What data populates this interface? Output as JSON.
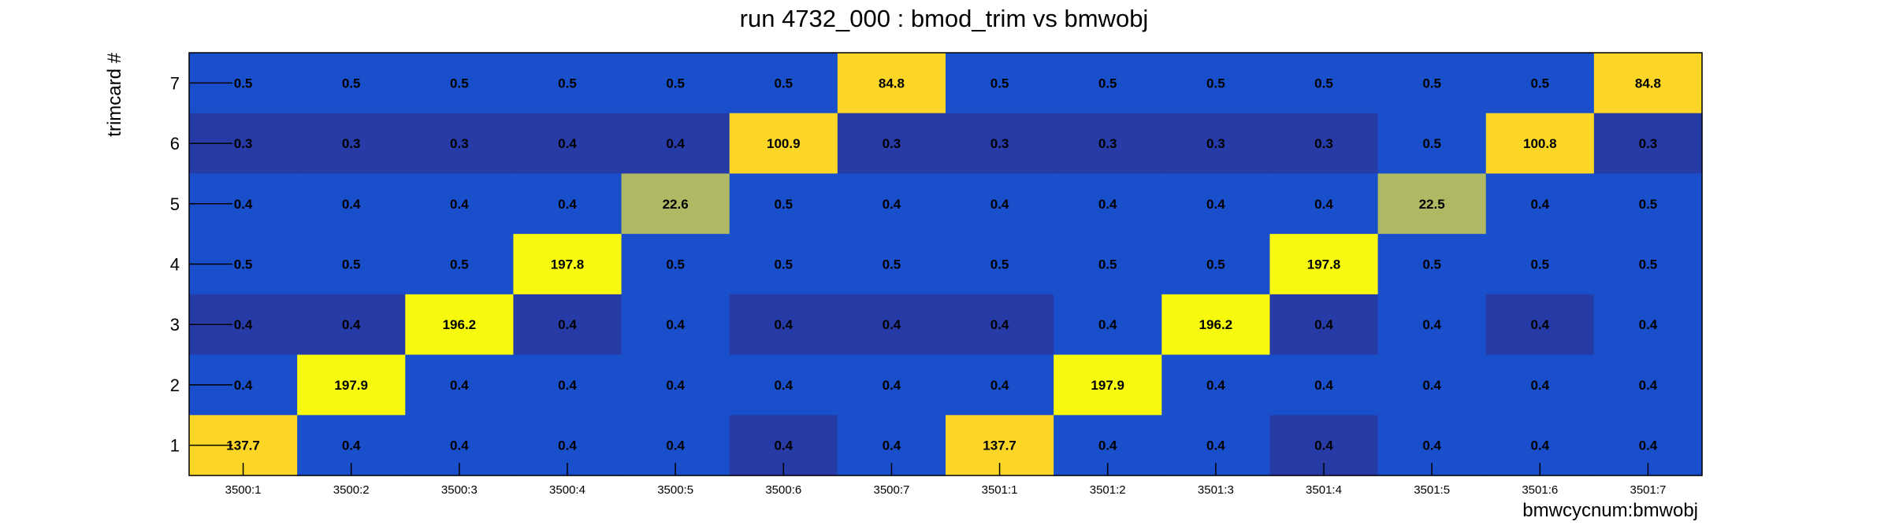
{
  "chart_data": {
    "type": "heatmap",
    "title": "run 4732_000 : bmod_trim vs bmwobj",
    "xlabel": "bmwcycnum:bmwobj",
    "ylabel": "trimcard #",
    "x_categories": [
      "3500:1",
      "3500:2",
      "3500:3",
      "3500:4",
      "3500:5",
      "3500:6",
      "3500:7",
      "3501:1",
      "3501:2",
      "3501:3",
      "3501:4",
      "3501:5",
      "3501:6",
      "3501:7"
    ],
    "y_categories": [
      "1",
      "2",
      "3",
      "4",
      "5",
      "6",
      "7"
    ],
    "rows": [
      {
        "y": "7",
        "values": [
          "0.5",
          "0.5",
          "0.5",
          "0.5",
          "0.5",
          "0.5",
          "84.8",
          "0.5",
          "0.5",
          "0.5",
          "0.5",
          "0.5",
          "0.5",
          "84.8"
        ]
      },
      {
        "y": "6",
        "values": [
          "0.3",
          "0.3",
          "0.3",
          "0.4",
          "0.4",
          "100.9",
          "0.3",
          "0.3",
          "0.3",
          "0.3",
          "0.3",
          "0.5",
          "100.8",
          "0.3"
        ]
      },
      {
        "y": "5",
        "values": [
          "0.4",
          "0.4",
          "0.4",
          "0.4",
          "22.6",
          "0.5",
          "0.4",
          "0.4",
          "0.4",
          "0.4",
          "0.4",
          "22.5",
          "0.4",
          "0.5"
        ]
      },
      {
        "y": "4",
        "values": [
          "0.5",
          "0.5",
          "0.5",
          "197.8",
          "0.5",
          "0.5",
          "0.5",
          "0.5",
          "0.5",
          "0.5",
          "197.8",
          "0.5",
          "0.5",
          "0.5"
        ]
      },
      {
        "y": "3",
        "values": [
          "0.4",
          "0.4",
          "196.2",
          "0.4",
          "0.4",
          "0.4",
          "0.4",
          "0.4",
          "0.4",
          "196.2",
          "0.4",
          "0.4",
          "0.4",
          "0.4"
        ]
      },
      {
        "y": "2",
        "values": [
          "0.4",
          "197.9",
          "0.4",
          "0.4",
          "0.4",
          "0.4",
          "0.4",
          "0.4",
          "197.9",
          "0.4",
          "0.4",
          "0.4",
          "0.4",
          "0.4"
        ]
      },
      {
        "y": "1",
        "values": [
          "137.7",
          "0.4",
          "0.4",
          "0.4",
          "0.4",
          "0.4",
          "0.4",
          "137.7",
          "0.4",
          "0.4",
          "0.4",
          "0.4",
          "0.4",
          "0.4"
        ]
      }
    ],
    "colors": {
      "low_dark": "#263ba6",
      "low": "#1a4fcc",
      "mid": "#afb963",
      "high_mid": "#fbd627",
      "high": "#f7f90e"
    },
    "grid": false,
    "legend": "none"
  }
}
